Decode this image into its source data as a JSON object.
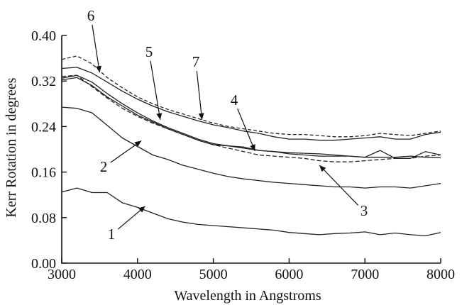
{
  "chart_data": {
    "type": "line",
    "title": "",
    "xlabel": "Wavelength in Angstroms",
    "ylabel": "Kerr Rotation in degrees",
    "xlim": [
      3000,
      8000
    ],
    "ylim": [
      0.0,
      0.4
    ],
    "x_ticks": [
      "3000",
      "4000",
      "5000",
      "6000",
      "7000",
      "8000"
    ],
    "y_ticks": [
      "0.00",
      "0.08",
      "0.16",
      "0.24",
      "0.32",
      "0.40"
    ],
    "grid": false,
    "line_color": "#222222",
    "series": [
      {
        "name": "1",
        "x": [
          3000,
          3200,
          3400,
          3600,
          3800,
          4000,
          4200,
          4400,
          4600,
          4800,
          5000,
          5200,
          5400,
          5600,
          5800,
          6000,
          6200,
          6400,
          6600,
          6800,
          7000,
          7200,
          7400,
          7600,
          7800,
          8000
        ],
        "y": [
          0.125,
          0.132,
          0.124,
          0.124,
          0.106,
          0.098,
          0.088,
          0.078,
          0.072,
          0.068,
          0.066,
          0.064,
          0.062,
          0.06,
          0.058,
          0.054,
          0.052,
          0.05,
          0.052,
          0.053,
          0.055,
          0.05,
          0.053,
          0.05,
          0.048,
          0.054
        ]
      },
      {
        "name": "2",
        "x": [
          3000,
          3200,
          3400,
          3600,
          3800,
          4000,
          4200,
          4400,
          4600,
          4800,
          5000,
          5200,
          5400,
          5600,
          5800,
          6000,
          6200,
          6400,
          6600,
          6800,
          7000,
          7200,
          7400,
          7600,
          7800,
          8000
        ],
        "y": [
          0.274,
          0.272,
          0.264,
          0.242,
          0.22,
          0.205,
          0.19,
          0.182,
          0.172,
          0.165,
          0.158,
          0.152,
          0.148,
          0.145,
          0.142,
          0.14,
          0.138,
          0.136,
          0.134,
          0.134,
          0.132,
          0.134,
          0.134,
          0.132,
          0.136,
          0.14
        ]
      },
      {
        "name": "3",
        "x": [
          3000,
          3200,
          3400,
          3600,
          3800,
          4000,
          4200,
          4400,
          4600,
          4800,
          5000,
          5200,
          5400,
          5600,
          5800,
          6000,
          6200,
          6400,
          6600,
          6800,
          7000,
          7200,
          7400,
          7600,
          7800,
          8000
        ],
        "y": [
          0.328,
          0.33,
          0.31,
          0.29,
          0.272,
          0.258,
          0.246,
          0.236,
          0.226,
          0.216,
          0.208,
          0.202,
          0.196,
          0.19,
          0.188,
          0.186,
          0.184,
          0.18,
          0.178,
          0.178,
          0.18,
          0.182,
          0.184,
          0.184,
          0.188,
          0.19
        ]
      },
      {
        "name": "4",
        "x": [
          3000,
          3200,
          3400,
          3600,
          3800,
          4000,
          4200,
          4400,
          4600,
          4800,
          5000,
          5200,
          5400,
          5600,
          5800,
          6000,
          6200,
          6400,
          6600,
          6800,
          7000,
          7200,
          7400,
          7600,
          7800,
          8000
        ],
        "y": [
          0.325,
          0.33,
          0.318,
          0.298,
          0.28,
          0.264,
          0.25,
          0.238,
          0.228,
          0.218,
          0.21,
          0.206,
          0.202,
          0.198,
          0.196,
          0.194,
          0.193,
          0.192,
          0.19,
          0.188,
          0.186,
          0.186,
          0.186,
          0.188,
          0.186,
          0.185
        ]
      },
      {
        "name": "5",
        "x": [
          3000,
          3200,
          3400,
          3600,
          3800,
          4000,
          4200,
          4400,
          4600,
          4800,
          5000,
          5200,
          5400,
          5600,
          5800,
          6000,
          6200,
          6400,
          6600,
          6800,
          7000,
          7200,
          7400,
          7600,
          7800,
          8000
        ],
        "y": [
          0.322,
          0.326,
          0.312,
          0.292,
          0.276,
          0.26,
          0.248,
          0.236,
          0.226,
          0.216,
          0.208,
          0.206,
          0.204,
          0.198,
          0.196,
          0.192,
          0.19,
          0.188,
          0.188,
          0.188,
          0.186,
          0.198,
          0.184,
          0.184,
          0.196,
          0.19
        ]
      },
      {
        "name": "6",
        "x": [
          3000,
          3200,
          3400,
          3600,
          3800,
          4000,
          4200,
          4400,
          4600,
          4800,
          5000,
          5200,
          5400,
          5600,
          5800,
          6000,
          6200,
          6400,
          6600,
          6800,
          7000,
          7200,
          7400,
          7600,
          7800,
          8000
        ],
        "y": [
          0.358,
          0.364,
          0.35,
          0.326,
          0.308,
          0.292,
          0.28,
          0.27,
          0.262,
          0.254,
          0.246,
          0.24,
          0.236,
          0.232,
          0.228,
          0.226,
          0.226,
          0.224,
          0.222,
          0.222,
          0.224,
          0.228,
          0.226,
          0.224,
          0.228,
          0.232
        ]
      },
      {
        "name": "7",
        "x": [
          3000,
          3200,
          3400,
          3600,
          3800,
          4000,
          4200,
          4400,
          4600,
          4800,
          5000,
          5200,
          5400,
          5600,
          5800,
          6000,
          6200,
          6400,
          6600,
          6800,
          7000,
          7200,
          7400,
          7600,
          7800,
          8000
        ],
        "y": [
          0.342,
          0.344,
          0.334,
          0.318,
          0.302,
          0.288,
          0.276,
          0.266,
          0.258,
          0.25,
          0.243,
          0.238,
          0.232,
          0.228,
          0.222,
          0.218,
          0.218,
          0.216,
          0.216,
          0.218,
          0.22,
          0.222,
          0.218,
          0.218,
          0.226,
          0.23
        ]
      }
    ],
    "annotations": [
      {
        "label": "1",
        "target": [
          4100,
          0.1
        ]
      },
      {
        "label": "2",
        "target": [
          4050,
          0.215
        ]
      },
      {
        "label": "3",
        "target": [
          6400,
          0.172
        ]
      },
      {
        "label": "4",
        "target": [
          5550,
          0.197
        ]
      },
      {
        "label": "5",
        "target": [
          4300,
          0.252
        ]
      },
      {
        "label": "6",
        "target": [
          3500,
          0.335
        ]
      },
      {
        "label": "7",
        "target": [
          4850,
          0.252
        ]
      }
    ]
  }
}
